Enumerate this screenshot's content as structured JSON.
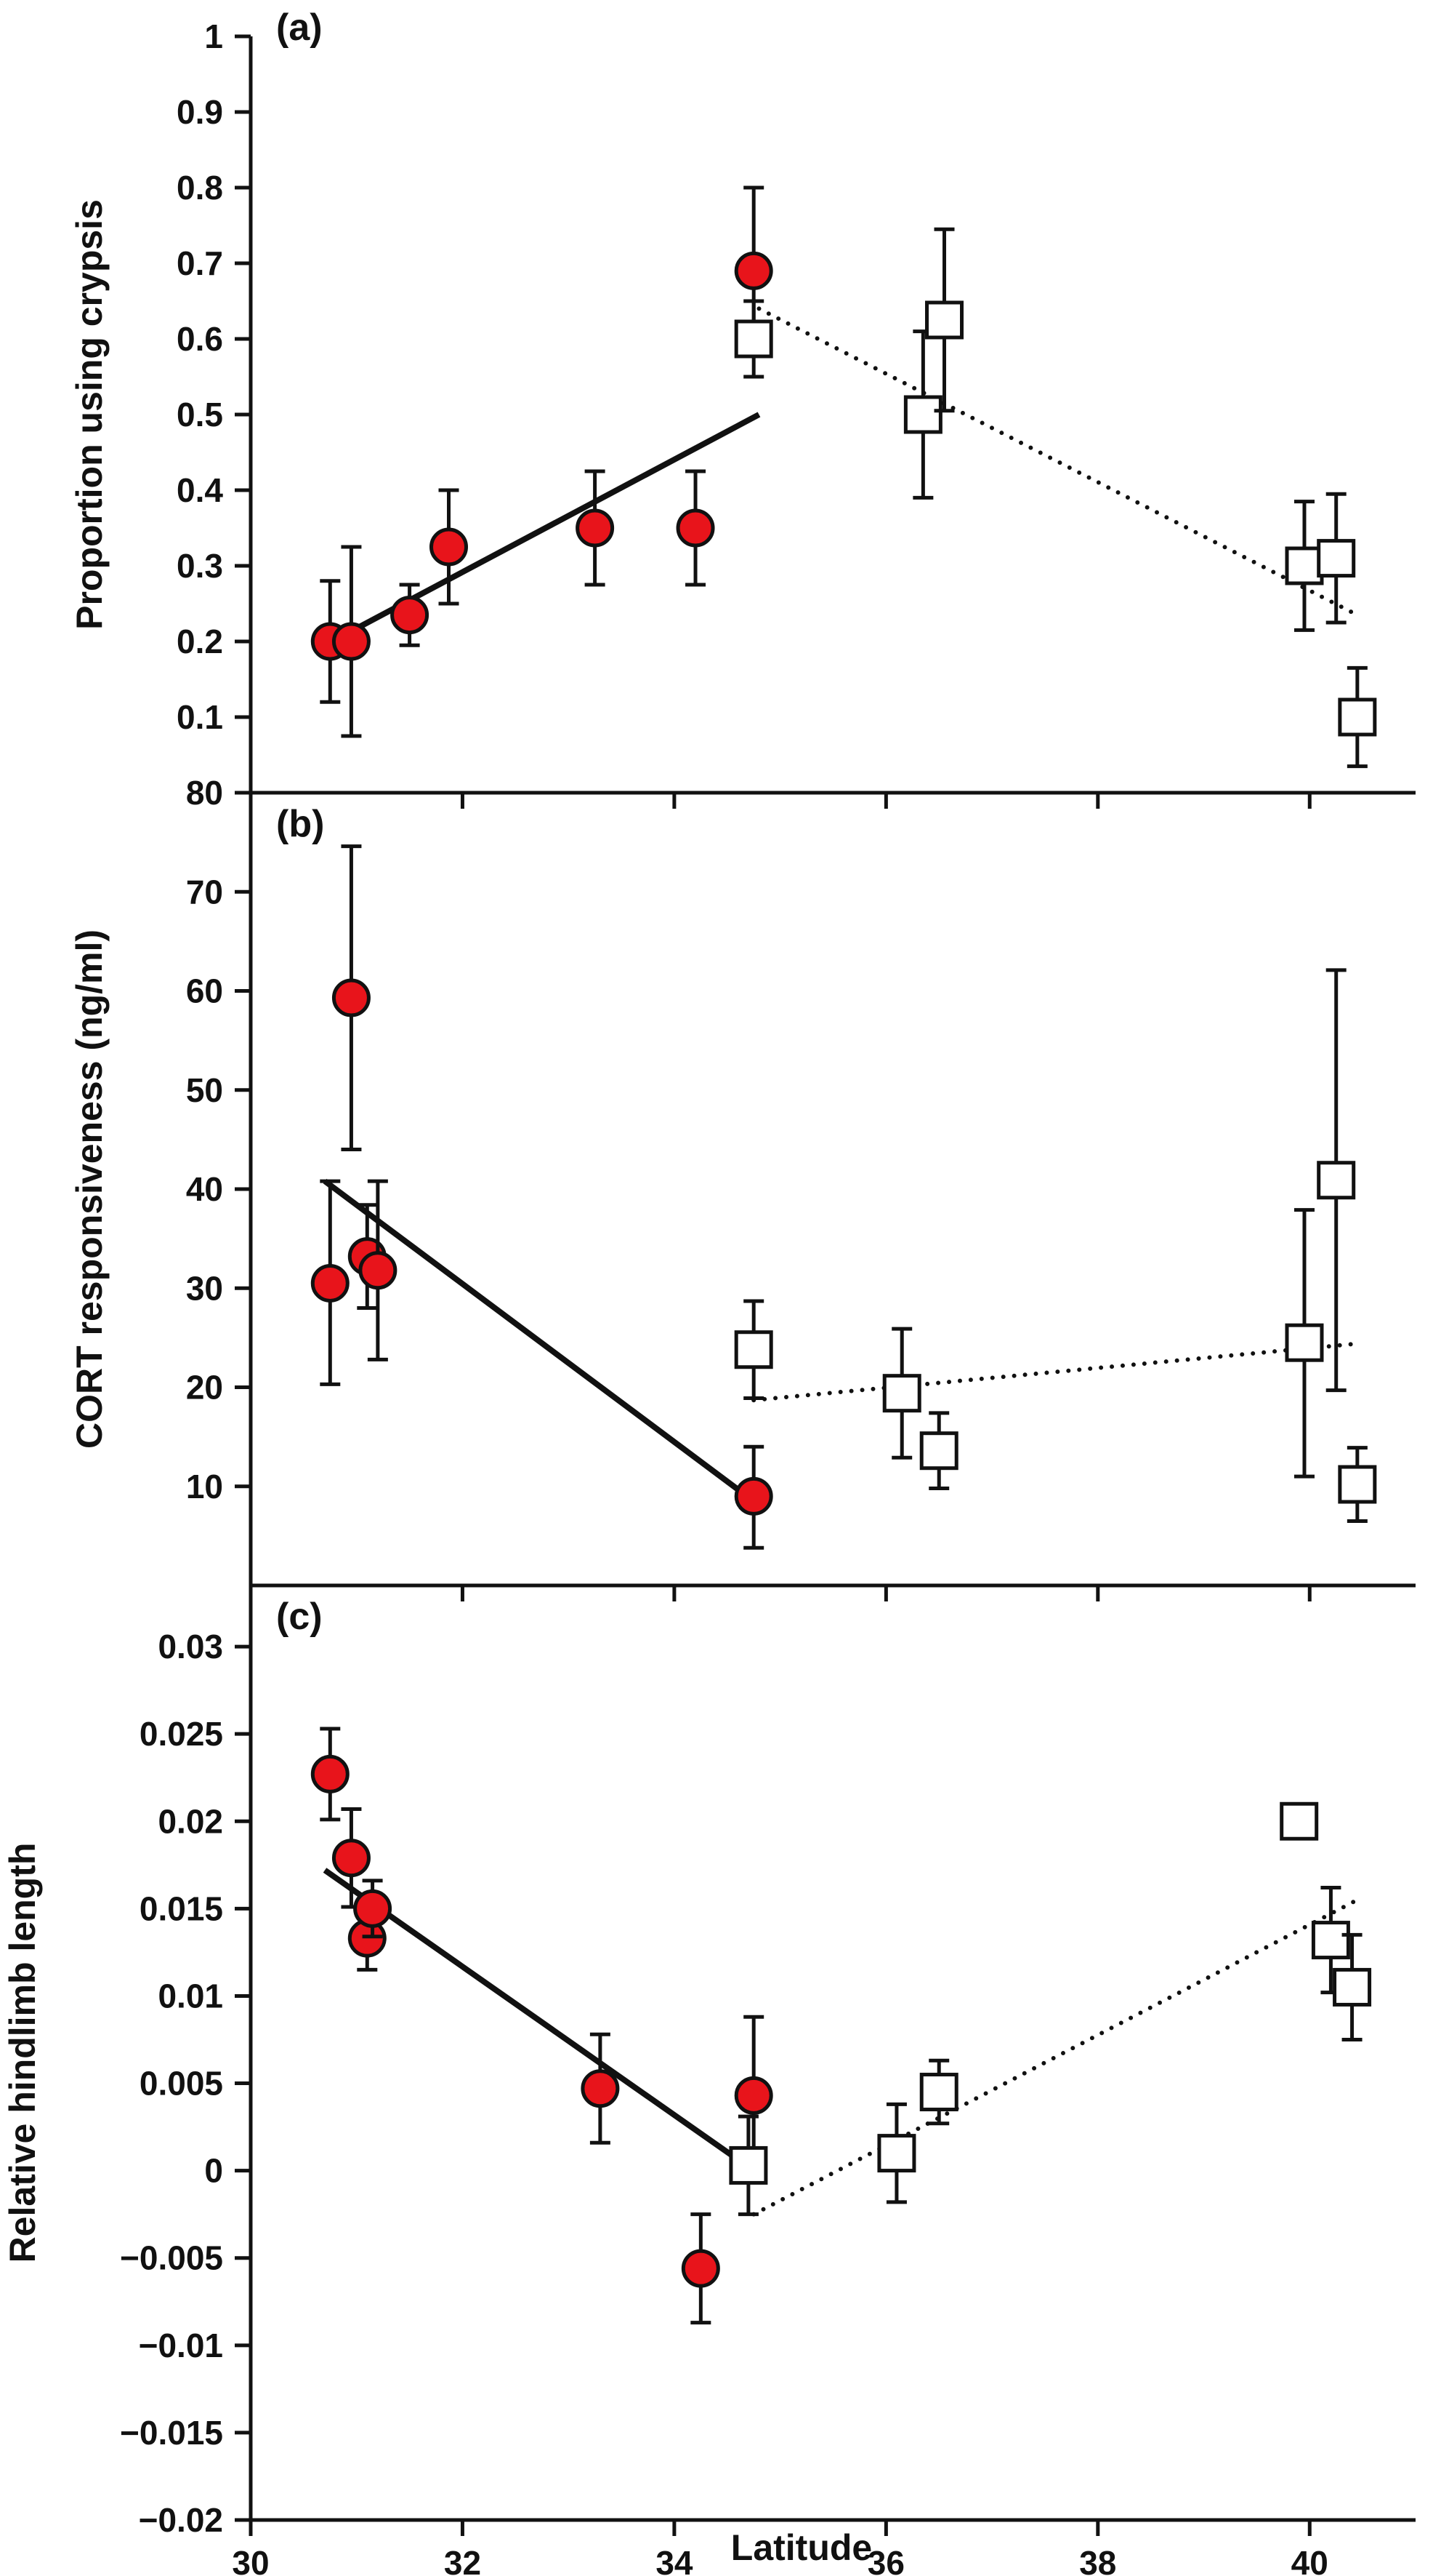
{
  "figure": {
    "xlabel": "Latitude"
  },
  "chart_data": [
    {
      "type": "scatter",
      "panel_label": "(a)",
      "ylabel": "Proportion using crypsis",
      "xlim": [
        30,
        41
      ],
      "ylim": [
        0,
        1
      ],
      "x_ticks": [
        30,
        32,
        34,
        36,
        38,
        40
      ],
      "y_ticks": [
        0.1,
        0.2,
        0.3,
        0.4,
        0.5,
        0.6,
        0.7,
        0.8,
        0.9,
        1
      ],
      "y_tick_labels": [
        "0.1",
        "0.2",
        "0.3",
        "0.4",
        "0.5",
        "0.6",
        "0.7",
        "0.8",
        "0.9",
        "1"
      ],
      "grid": false,
      "series": [
        {
          "marker": "circle",
          "color": "#e8141b",
          "points": [
            {
              "x": 30.75,
              "y": 0.2,
              "lo": 0.12,
              "hi": 0.28
            },
            {
              "x": 30.95,
              "y": 0.2,
              "lo": 0.075,
              "hi": 0.325
            },
            {
              "x": 31.5,
              "y": 0.235,
              "lo": 0.195,
              "hi": 0.275
            },
            {
              "x": 31.87,
              "y": 0.325,
              "lo": 0.25,
              "hi": 0.4
            },
            {
              "x": 33.25,
              "y": 0.35,
              "lo": 0.275,
              "hi": 0.425
            },
            {
              "x": 34.2,
              "y": 0.35,
              "lo": 0.275,
              "hi": 0.425
            },
            {
              "x": 34.75,
              "y": 0.69,
              "lo": 0.58,
              "hi": 0.8
            }
          ]
        },
        {
          "marker": "square",
          "color": "#ffffff",
          "points": [
            {
              "x": 34.75,
              "y": 0.6,
              "lo": 0.55,
              "hi": 0.65
            },
            {
              "x": 36.35,
              "y": 0.5,
              "lo": 0.39,
              "hi": 0.61
            },
            {
              "x": 36.55,
              "y": 0.625,
              "lo": 0.505,
              "hi": 0.745
            },
            {
              "x": 39.95,
              "y": 0.3,
              "lo": 0.215,
              "hi": 0.385
            },
            {
              "x": 40.25,
              "y": 0.31,
              "lo": 0.225,
              "hi": 0.395
            },
            {
              "x": 40.45,
              "y": 0.1,
              "lo": 0.035,
              "hi": 0.165
            }
          ]
        }
      ],
      "trend_lines": [
        {
          "style": "solid",
          "x": [
            30.7,
            34.8
          ],
          "y": [
            0.195,
            0.5
          ]
        },
        {
          "style": "dotted",
          "x": [
            34.8,
            40.45
          ],
          "y": [
            0.64,
            0.235
          ]
        }
      ]
    },
    {
      "type": "scatter",
      "panel_label": "(b)",
      "ylabel": "CORT responsiveness (ng/ml)",
      "xlim": [
        30,
        41
      ],
      "ylim": [
        0,
        80
      ],
      "x_ticks": [
        30,
        32,
        34,
        36,
        38,
        40
      ],
      "y_ticks": [
        10,
        20,
        30,
        40,
        50,
        60,
        70,
        80
      ],
      "y_tick_labels": [
        "10",
        "20",
        "30",
        "40",
        "50",
        "60",
        "70",
        "80"
      ],
      "grid": false,
      "series": [
        {
          "marker": "circle",
          "color": "#e8141b",
          "points": [
            {
              "x": 30.75,
              "y": 30.5,
              "lo": 20.3,
              "hi": 40.8
            },
            {
              "x": 30.95,
              "y": 59.3,
              "lo": 44.0,
              "hi": 74.6
            },
            {
              "x": 31.1,
              "y": 33.2,
              "lo": 28.0,
              "hi": 38.4
            },
            {
              "x": 31.2,
              "y": 31.8,
              "lo": 22.8,
              "hi": 40.8
            },
            {
              "x": 34.75,
              "y": 9.0,
              "lo": 3.8,
              "hi": 14.0
            }
          ]
        },
        {
          "marker": "square",
          "color": "#ffffff",
          "points": [
            {
              "x": 34.75,
              "y": 23.8,
              "lo": 18.9,
              "hi": 28.7
            },
            {
              "x": 36.15,
              "y": 19.4,
              "lo": 12.9,
              "hi": 25.9
            },
            {
              "x": 36.5,
              "y": 13.6,
              "lo": 9.8,
              "hi": 17.4
            },
            {
              "x": 39.95,
              "y": 24.5,
              "lo": 11.0,
              "hi": 37.9
            },
            {
              "x": 40.25,
              "y": 40.9,
              "lo": 19.7,
              "hi": 62.1
            },
            {
              "x": 40.45,
              "y": 10.2,
              "lo": 6.5,
              "hi": 13.9
            }
          ]
        }
      ],
      "trend_lines": [
        {
          "style": "solid",
          "x": [
            30.7,
            34.75
          ],
          "y": [
            40.8,
            8.5
          ]
        },
        {
          "style": "dotted",
          "x": [
            34.75,
            40.45
          ],
          "y": [
            18.7,
            24.4
          ]
        }
      ]
    },
    {
      "type": "scatter",
      "panel_label": "(c)",
      "ylabel": "Relative hindlimb length",
      "xlim": [
        30,
        41
      ],
      "ylim": [
        -0.02,
        0.0335
      ],
      "x_ticks": [
        30,
        32,
        34,
        36,
        38,
        40
      ],
      "x_tick_labels": [
        "30",
        "32",
        "34",
        "36",
        "38",
        "40"
      ],
      "y_ticks": [
        -0.02,
        -0.015,
        -0.01,
        -0.005,
        0,
        0.005,
        0.01,
        0.015,
        0.02,
        0.025,
        0.03
      ],
      "y_tick_labels": [
        "−0.02",
        "−0.015",
        "−0.01",
        "−0.005",
        "0",
        "0.005",
        "0.01",
        "0.015",
        "0.02",
        "0.025",
        "0.03"
      ],
      "grid": false,
      "series": [
        {
          "marker": "circle",
          "color": "#e8141b",
          "points": [
            {
              "x": 30.75,
              "y": 0.0227,
              "lo": 0.0201,
              "hi": 0.0253
            },
            {
              "x": 30.95,
              "y": 0.0179,
              "lo": 0.0151,
              "hi": 0.0207
            },
            {
              "x": 31.1,
              "y": 0.0133,
              "lo": 0.0115,
              "hi": 0.0151
            },
            {
              "x": 31.15,
              "y": 0.015,
              "lo": 0.0134,
              "hi": 0.0166
            },
            {
              "x": 33.3,
              "y": 0.0047,
              "lo": 0.0016,
              "hi": 0.0078
            },
            {
              "x": 34.25,
              "y": -0.0056,
              "lo": -0.0087,
              "hi": -0.0025
            },
            {
              "x": 34.75,
              "y": 0.0043,
              "lo": -0.0002,
              "hi": 0.0088
            }
          ]
        },
        {
          "marker": "square",
          "color": "#ffffff",
          "points": [
            {
              "x": 34.7,
              "y": 0.0003,
              "lo": -0.0025,
              "hi": 0.0031
            },
            {
              "x": 36.1,
              "y": 0.001,
              "lo": -0.0018,
              "hi": 0.0038
            },
            {
              "x": 36.5,
              "y": 0.0045,
              "lo": 0.0027,
              "hi": 0.0063
            },
            {
              "x": 39.9,
              "y": 0.02,
              "lo": 0.02,
              "hi": 0.02
            },
            {
              "x": 40.2,
              "y": 0.0132,
              "lo": 0.0102,
              "hi": 0.0162
            },
            {
              "x": 40.4,
              "y": 0.0105,
              "lo": 0.0075,
              "hi": 0.0135
            }
          ]
        }
      ],
      "trend_lines": [
        {
          "style": "solid",
          "x": [
            30.7,
            34.75
          ],
          "y": [
            0.0172,
            0.0
          ]
        },
        {
          "style": "dotted",
          "x": [
            34.75,
            40.45
          ],
          "y": [
            -0.0025,
            0.0155
          ]
        }
      ]
    }
  ]
}
